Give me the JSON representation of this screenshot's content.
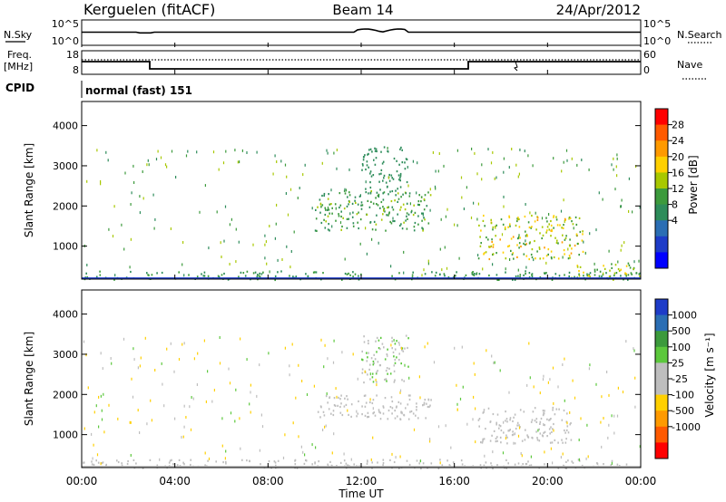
{
  "header": {
    "station": "Kerguelen (fitACF)",
    "beam": "Beam 14",
    "date": "24/Apr/2012"
  },
  "summary": {
    "nsky_label": "N.Sky",
    "nsky_ticks": [
      "10^5",
      "10^0"
    ],
    "nsearch_label": "N.Search",
    "freq_label": "Freq.",
    "freq_unit": "[MHz]",
    "freq_ticks": [
      "18",
      "8"
    ],
    "nave_label": "Nave",
    "nave_ticks": [
      "60",
      "0"
    ],
    "cpid_label": "CPID",
    "cpid_value": "normal (fast) 151"
  },
  "colorbars": {
    "power": {
      "label": "Power [dB]",
      "ticks": [
        "28",
        "24",
        "20",
        "16",
        "12",
        "8",
        "4"
      ],
      "colors": [
        "#ff0000",
        "#ff5a00",
        "#ff9a00",
        "#ffd000",
        "#a8c800",
        "#3c9a3c",
        "#2d8c5a",
        "#2b6eb4",
        "#1e3cc8",
        "#0000ff"
      ]
    },
    "velocity": {
      "label": "Velocity [m s⁻¹]",
      "ticks": [
        "1000",
        "500",
        "100",
        "25",
        "-25",
        "-100",
        "-500",
        "-1000"
      ],
      "colors": [
        "#1e3cc8",
        "#2b6eb4",
        "#3c9a3c",
        "#5cc83c",
        "#bebebe",
        "#bebebe",
        "#ffd000",
        "#ff9a00",
        "#ff5a00",
        "#ff0000"
      ]
    }
  },
  "axes": {
    "y_label": "Slant Range [km]",
    "x_label": "Time UT"
  },
  "chart_data": [
    {
      "type": "heatmap",
      "title": "Power",
      "ylabel": "Slant Range [km]",
      "xlabel": "Time UT",
      "xlim": [
        0,
        24
      ],
      "ylim": [
        180,
        4600
      ],
      "x_ticks": [
        "00:00",
        "04:00",
        "08:00",
        "12:00",
        "16:00",
        "20:00",
        "00:00"
      ],
      "y_ticks": [
        1000,
        2000,
        3000,
        4000
      ],
      "colorbar": {
        "label": "Power [dB]",
        "ticks": [
          4,
          8,
          12,
          16,
          20,
          24,
          28
        ]
      },
      "features": [
        {
          "time_range": [
            0,
            24
          ],
          "range_km": [
            180,
            400
          ],
          "power_dB": [
            4,
            12
          ]
        },
        {
          "time_range": [
            10,
            15
          ],
          "range_km": [
            1400,
            2400
          ],
          "power_dB": [
            4,
            14
          ]
        },
        {
          "time_range": [
            12,
            14
          ],
          "range_km": [
            2300,
            3500
          ],
          "power_dB": [
            4,
            8
          ]
        },
        {
          "time_range": [
            17,
            21.5
          ],
          "range_km": [
            700,
            1800
          ],
          "power_dB": [
            8,
            22
          ]
        },
        {
          "time_range": [
            21,
            24
          ],
          "range_km": [
            180,
            600
          ],
          "power_dB": [
            8,
            20
          ]
        }
      ]
    },
    {
      "type": "heatmap",
      "title": "Velocity",
      "ylabel": "Slant Range [km]",
      "xlabel": "Time UT",
      "xlim": [
        0,
        24
      ],
      "ylim": [
        180,
        4600
      ],
      "x_ticks": [
        "00:00",
        "04:00",
        "08:00",
        "12:00",
        "16:00",
        "20:00",
        "00:00"
      ],
      "y_ticks": [
        1000,
        2000,
        3000,
        4000
      ],
      "colorbar": {
        "label": "Velocity [m s⁻¹]",
        "ticks": [
          1000,
          500,
          100,
          25,
          -25,
          -100,
          -500,
          -1000
        ]
      },
      "features": [
        {
          "time_range": [
            0,
            24
          ],
          "range_km": [
            180,
            400
          ],
          "velocity_ms": [
            -100,
            -25
          ]
        },
        {
          "time_range": [
            10,
            15
          ],
          "range_km": [
            1400,
            2000
          ],
          "velocity_ms": [
            -25,
            25
          ]
        },
        {
          "time_range": [
            17,
            21
          ],
          "range_km": [
            800,
            1700
          ],
          "velocity_ms": [
            -25,
            25
          ]
        },
        {
          "time_range": [
            12,
            14
          ],
          "range_km": [
            2300,
            3500
          ],
          "velocity_ms": [
            -100,
            100
          ]
        }
      ]
    }
  ]
}
